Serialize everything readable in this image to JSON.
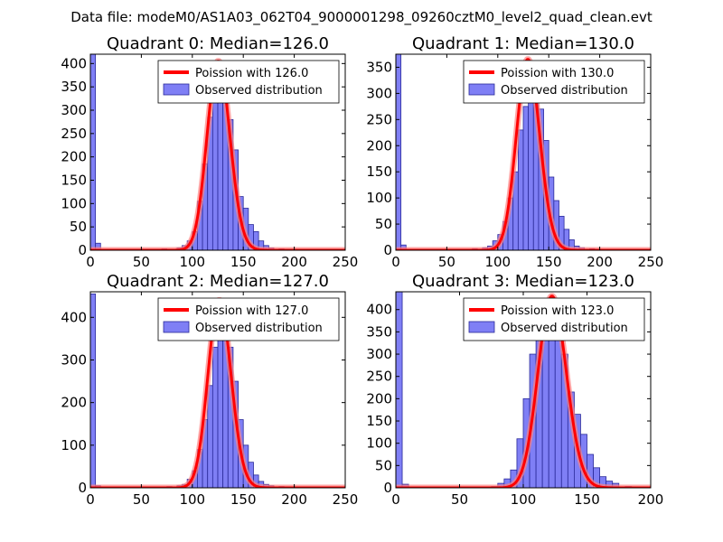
{
  "figure": {
    "suptitle": "Data file: modeM0/AS1A03_062T04_9000001298_09260cztM0_level2_quad_clean.evt"
  },
  "colors": {
    "hist_fill": "#7f7ff5",
    "hist_edge": "#2a2a9a",
    "poisson_line": "#ff0000",
    "poisson_glow": "#ff8080",
    "axes": "#000000"
  },
  "chart_data": [
    {
      "type": "bar",
      "quadrant": 0,
      "title": "Quadrant 0: Median=126.0",
      "median": 126.0,
      "xlim": [
        0,
        250
      ],
      "ylim": [
        0,
        420
      ],
      "xticks": [
        0,
        50,
        100,
        150,
        200,
        250
      ],
      "yticks": [
        0,
        50,
        100,
        150,
        200,
        250,
        300,
        350,
        400
      ],
      "legend": [
        "Poission with 126.0",
        "Observed distribution"
      ],
      "poisson_peak": 405,
      "bin_width": 5,
      "bins": [
        {
          "x": 0,
          "h": 420
        },
        {
          "x": 5,
          "h": 15
        },
        {
          "x": 70,
          "h": 3
        },
        {
          "x": 85,
          "h": 5
        },
        {
          "x": 90,
          "h": 10
        },
        {
          "x": 95,
          "h": 20
        },
        {
          "x": 100,
          "h": 40
        },
        {
          "x": 105,
          "h": 105
        },
        {
          "x": 110,
          "h": 185
        },
        {
          "x": 115,
          "h": 285
        },
        {
          "x": 120,
          "h": 325
        },
        {
          "x": 125,
          "h": 380
        },
        {
          "x": 130,
          "h": 355
        },
        {
          "x": 135,
          "h": 280
        },
        {
          "x": 140,
          "h": 215
        },
        {
          "x": 145,
          "h": 115
        },
        {
          "x": 150,
          "h": 90
        },
        {
          "x": 155,
          "h": 55
        },
        {
          "x": 160,
          "h": 40
        },
        {
          "x": 165,
          "h": 20
        },
        {
          "x": 170,
          "h": 10
        },
        {
          "x": 175,
          "h": 5
        },
        {
          "x": 185,
          "h": 3
        }
      ]
    },
    {
      "type": "bar",
      "quadrant": 1,
      "title": "Quadrant 1: Median=130.0",
      "median": 130.0,
      "xlim": [
        0,
        250
      ],
      "ylim": [
        0,
        375
      ],
      "xticks": [
        0,
        50,
        100,
        150,
        200,
        250
      ],
      "yticks": [
        0,
        50,
        100,
        150,
        200,
        250,
        300,
        350
      ],
      "legend": [
        "Poission with 130.0",
        "Observed distribution"
      ],
      "poisson_peak": 365,
      "bin_width": 5,
      "bins": [
        {
          "x": 0,
          "h": 375
        },
        {
          "x": 5,
          "h": 10
        },
        {
          "x": 75,
          "h": 3
        },
        {
          "x": 85,
          "h": 5
        },
        {
          "x": 90,
          "h": 8
        },
        {
          "x": 95,
          "h": 18
        },
        {
          "x": 100,
          "h": 30
        },
        {
          "x": 105,
          "h": 55
        },
        {
          "x": 110,
          "h": 100
        },
        {
          "x": 115,
          "h": 150
        },
        {
          "x": 120,
          "h": 230
        },
        {
          "x": 125,
          "h": 275
        },
        {
          "x": 130,
          "h": 300
        },
        {
          "x": 135,
          "h": 340
        },
        {
          "x": 140,
          "h": 270
        },
        {
          "x": 145,
          "h": 210
        },
        {
          "x": 150,
          "h": 140
        },
        {
          "x": 155,
          "h": 95
        },
        {
          "x": 160,
          "h": 65
        },
        {
          "x": 165,
          "h": 40
        },
        {
          "x": 170,
          "h": 20
        },
        {
          "x": 175,
          "h": 8
        },
        {
          "x": 180,
          "h": 5
        },
        {
          "x": 190,
          "h": 3
        }
      ]
    },
    {
      "type": "bar",
      "quadrant": 2,
      "title": "Quadrant 2: Median=127.0",
      "median": 127.0,
      "xlim": [
        0,
        250
      ],
      "ylim": [
        0,
        460
      ],
      "xticks": [
        0,
        50,
        100,
        150,
        200,
        250
      ],
      "yticks": [
        0,
        100,
        200,
        300,
        400
      ],
      "legend": [
        "Poission with 127.0",
        "Observed distribution"
      ],
      "poisson_peak": 440,
      "bin_width": 5,
      "bins": [
        {
          "x": 0,
          "h": 455
        },
        {
          "x": 5,
          "h": 5
        },
        {
          "x": 75,
          "h": 3
        },
        {
          "x": 85,
          "h": 5
        },
        {
          "x": 90,
          "h": 8
        },
        {
          "x": 95,
          "h": 20
        },
        {
          "x": 100,
          "h": 40
        },
        {
          "x": 105,
          "h": 90
        },
        {
          "x": 110,
          "h": 160
        },
        {
          "x": 115,
          "h": 240
        },
        {
          "x": 120,
          "h": 330
        },
        {
          "x": 125,
          "h": 400
        },
        {
          "x": 130,
          "h": 375
        },
        {
          "x": 135,
          "h": 330
        },
        {
          "x": 140,
          "h": 250
        },
        {
          "x": 145,
          "h": 160
        },
        {
          "x": 150,
          "h": 100
        },
        {
          "x": 155,
          "h": 60
        },
        {
          "x": 160,
          "h": 30
        },
        {
          "x": 165,
          "h": 15
        },
        {
          "x": 170,
          "h": 8
        },
        {
          "x": 175,
          "h": 5
        },
        {
          "x": 185,
          "h": 3
        },
        {
          "x": 195,
          "h": 2
        }
      ]
    },
    {
      "type": "bar",
      "quadrant": 3,
      "title": "Quadrant 3: Median=123.0",
      "median": 123.0,
      "xlim": [
        0,
        200
      ],
      "ylim": [
        0,
        440
      ],
      "xticks": [
        0,
        50,
        100,
        150,
        200
      ],
      "yticks": [
        0,
        50,
        100,
        150,
        200,
        250,
        300,
        350,
        400
      ],
      "legend": [
        "Poission with 123.0",
        "Observed distribution"
      ],
      "poisson_peak": 430,
      "bin_width": 5,
      "bins": [
        {
          "x": 0,
          "h": 440
        },
        {
          "x": 5,
          "h": 8
        },
        {
          "x": 75,
          "h": 3
        },
        {
          "x": 80,
          "h": 10
        },
        {
          "x": 85,
          "h": 20
        },
        {
          "x": 90,
          "h": 40
        },
        {
          "x": 95,
          "h": 110
        },
        {
          "x": 100,
          "h": 200
        },
        {
          "x": 105,
          "h": 300
        },
        {
          "x": 110,
          "h": 390
        },
        {
          "x": 115,
          "h": 360
        },
        {
          "x": 120,
          "h": 360
        },
        {
          "x": 125,
          "h": 400
        },
        {
          "x": 130,
          "h": 300
        },
        {
          "x": 135,
          "h": 215
        },
        {
          "x": 140,
          "h": 165
        },
        {
          "x": 145,
          "h": 120
        },
        {
          "x": 150,
          "h": 75
        },
        {
          "x": 155,
          "h": 45
        },
        {
          "x": 160,
          "h": 25
        },
        {
          "x": 165,
          "h": 15
        },
        {
          "x": 170,
          "h": 10
        },
        {
          "x": 180,
          "h": 3
        }
      ]
    }
  ]
}
